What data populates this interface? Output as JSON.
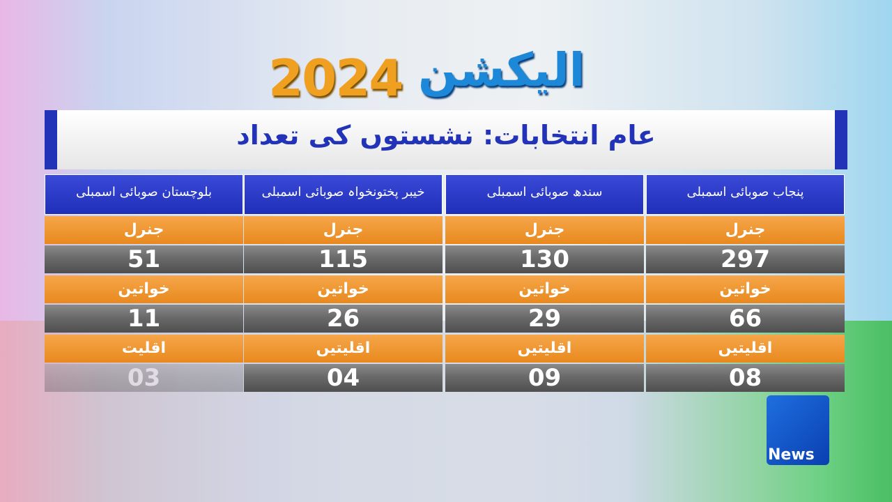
{
  "logo": {
    "word": "الیکشن",
    "year": "2024"
  },
  "title": "عام انتخابات:  نشستوں کی تعداد",
  "table": {
    "columns": [
      {
        "name": "بلوچستان صوبائی اسمبلی",
        "rows": [
          {
            "label": "جنرل",
            "value": "51"
          },
          {
            "label": "خواتین",
            "value": "11"
          },
          {
            "label": "اقلیت",
            "value": "03"
          }
        ]
      },
      {
        "name": "خیبر پختونخواہ صوبائی اسمبلی",
        "rows": [
          {
            "label": "جنرل",
            "value": "115"
          },
          {
            "label": "خواتین",
            "value": "26"
          },
          {
            "label": "اقلیتیں",
            "value": "04"
          }
        ]
      },
      {
        "name": "سندھ صوبائی اسمبلی",
        "rows": [
          {
            "label": "جنرل",
            "value": "130"
          },
          {
            "label": "خواتین",
            "value": "29"
          },
          {
            "label": "اقلیتیں",
            "value": "09"
          }
        ]
      },
      {
        "name": "پنجاب صوبائی اسمبلی",
        "rows": [
          {
            "label": "جنرل",
            "value": "297"
          },
          {
            "label": "خواتین",
            "value": "66"
          },
          {
            "label": "اقلیتیں",
            "value": "08"
          }
        ]
      }
    ]
  },
  "channel": {
    "name": "News"
  }
}
